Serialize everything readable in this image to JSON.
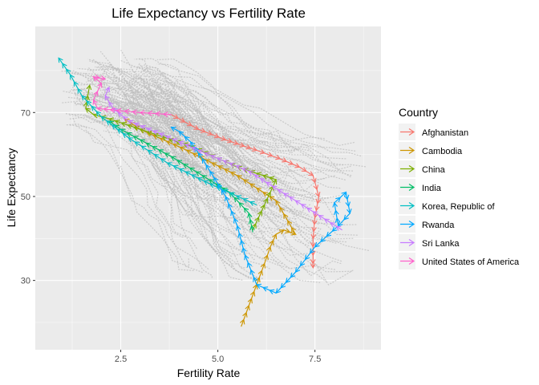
{
  "chart_data": {
    "type": "line",
    "title": "Life Expectancy vs Fertility Rate",
    "xlabel": "Fertility Rate",
    "ylabel": "Life Expectancy",
    "xlim": [
      0.3,
      9.2
    ],
    "ylim": [
      13.5,
      90.5
    ],
    "x_ticks": [
      2.5,
      5.0,
      7.5
    ],
    "x_tick_labels": [
      "2.5",
      "5.0",
      "7.5"
    ],
    "y_ticks": [
      30,
      50,
      70
    ],
    "y_tick_labels": [
      "30",
      "50",
      "70"
    ],
    "grid": true,
    "legend_title": "Country",
    "legend_position": "right",
    "background_color": "#ebebeb",
    "background_series_color": "#bebebe",
    "series": [
      {
        "name": "Afghanistan",
        "color": "#F8766D",
        "x": [
          3.8,
          4.5,
          5.2,
          6.0,
          6.6,
          7.1,
          7.45,
          7.6,
          7.5,
          7.45,
          7.45,
          7.45,
          7.45
        ],
        "y": [
          69.5,
          66.0,
          63.5,
          61.0,
          59.0,
          57.0,
          55.0,
          50.0,
          45.0,
          40.0,
          36.0,
          34.0,
          33.0
        ]
      },
      {
        "name": "Cambodia",
        "color": "#CD9600",
        "x": [
          5.6,
          5.8,
          6.0,
          6.2,
          6.35,
          6.5,
          6.7,
          7.0,
          6.5,
          5.5,
          4.2,
          3.0,
          2.6
        ],
        "y": [
          19.0,
          24.0,
          29.0,
          34.0,
          38.0,
          41.0,
          42.0,
          41.0,
          49.0,
          55.0,
          61.0,
          66.0,
          68.5
        ]
      },
      {
        "name": "China",
        "color": "#7CAE00",
        "x": [
          5.9,
          6.2,
          6.5,
          5.5,
          4.3,
          3.0,
          2.2,
          1.8,
          1.6,
          1.65,
          1.7
        ],
        "y": [
          42.0,
          48.0,
          54.0,
          57.0,
          62.0,
          66.0,
          68.5,
          69.5,
          71.0,
          74.0,
          76.5
        ]
      },
      {
        "name": "India",
        "color": "#00BE67",
        "x": [
          5.9,
          5.8,
          5.3,
          4.6,
          3.8,
          3.0,
          2.5,
          2.2
        ],
        "y": [
          41.5,
          46.0,
          51.0,
          55.0,
          59.5,
          63.5,
          66.0,
          68.0
        ]
      },
      {
        "name": "Korea, Republic of",
        "color": "#00BFC4",
        "x": [
          6.0,
          4.8,
          3.7,
          2.7,
          2.0,
          1.5,
          1.2,
          0.9
        ],
        "y": [
          48.0,
          53.0,
          58.0,
          64.0,
          69.0,
          74.0,
          79.0,
          83.0
        ]
      },
      {
        "name": "Rwanda",
        "color": "#00A9FF",
        "x": [
          8.1,
          8.0,
          8.3,
          8.4,
          8.1,
          7.5,
          7.0,
          6.5,
          6.0,
          5.7,
          5.5,
          5.2,
          4.8,
          4.6,
          4.3,
          4.0,
          3.8
        ],
        "y": [
          43.0,
          48.5,
          51.0,
          46.0,
          43.0,
          38.0,
          32.0,
          27.0,
          29.0,
          36.0,
          43.0,
          50.0,
          56.0,
          59.0,
          63.0,
          65.5,
          66.5
        ]
      },
      {
        "name": "Sri Lanka",
        "color": "#C77CFF",
        "x": [
          8.2,
          7.0,
          5.8,
          4.5,
          3.5,
          2.7,
          2.3,
          2.1,
          2.2
        ],
        "y": [
          42.0,
          49.0,
          56.0,
          61.0,
          65.0,
          68.0,
          71.0,
          74.0,
          76.0
        ]
      },
      {
        "name": "United States of America",
        "color": "#FF61CC",
        "x": [
          3.8,
          3.0,
          2.4,
          1.9,
          1.8,
          1.9,
          2.0,
          1.8,
          2.1
        ],
        "y": [
          69.5,
          70.0,
          70.5,
          71.0,
          73.0,
          75.0,
          77.0,
          78.5,
          78.0
        ]
      }
    ]
  }
}
